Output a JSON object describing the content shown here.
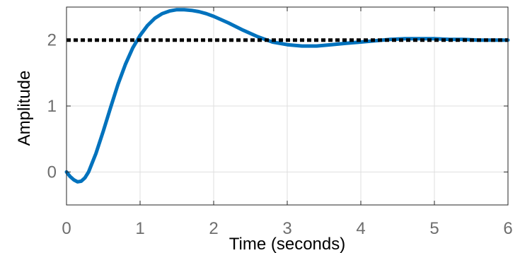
{
  "chart_data": {
    "type": "line",
    "xlabel": "Time (seconds)",
    "ylabel": "Amplitude",
    "xlim": [
      0,
      6
    ],
    "ylim": [
      -0.5,
      2.5
    ],
    "x_ticks": [
      0,
      1,
      2,
      3,
      4,
      5,
      6
    ],
    "y_ticks": [
      0,
      1,
      2
    ],
    "grid": true,
    "series": [
      {
        "style": "solid",
        "color": "#0072bd",
        "x": [
          0,
          0.05,
          0.1,
          0.15,
          0.2,
          0.25,
          0.3,
          0.4,
          0.5,
          0.6,
          0.7,
          0.8,
          0.9,
          1.0,
          1.1,
          1.2,
          1.3,
          1.4,
          1.5,
          1.6,
          1.7,
          1.8,
          1.9,
          2.0,
          2.2,
          2.4,
          2.6,
          2.8,
          3.0,
          3.2,
          3.4,
          3.6,
          3.8,
          4.0,
          4.2,
          4.4,
          4.6,
          4.8,
          5.0,
          5.2,
          5.4,
          5.6,
          5.8,
          6.0
        ],
        "y": [
          0,
          -0.07,
          -0.12,
          -0.15,
          -0.14,
          -0.09,
          0.0,
          0.28,
          0.62,
          0.98,
          1.33,
          1.63,
          1.88,
          2.07,
          2.22,
          2.33,
          2.4,
          2.44,
          2.46,
          2.46,
          2.45,
          2.43,
          2.4,
          2.36,
          2.26,
          2.15,
          2.05,
          1.97,
          1.93,
          1.91,
          1.91,
          1.93,
          1.95,
          1.97,
          1.99,
          2.01,
          2.02,
          2.02,
          2.02,
          2.01,
          2.01,
          2.0,
          2.0,
          2.0
        ]
      },
      {
        "style": "dotted",
        "color": "#000000",
        "x": [
          0,
          6
        ],
        "y": [
          2,
          2
        ]
      }
    ]
  }
}
